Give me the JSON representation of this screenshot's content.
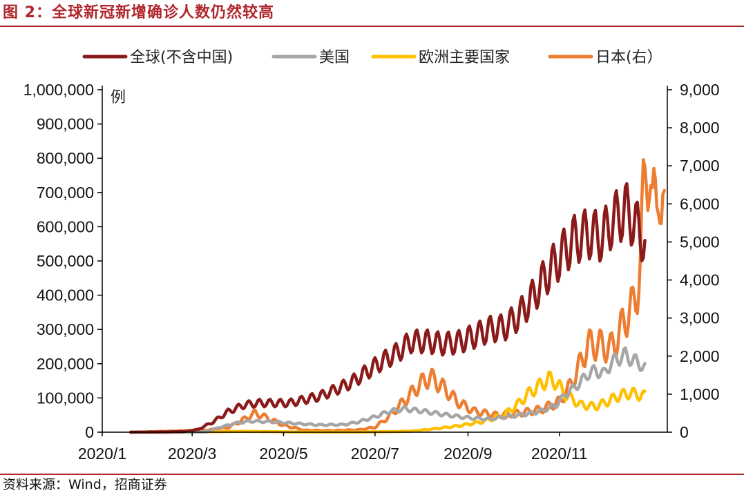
{
  "header": {
    "title": "图 2：全球新冠新增确诊人数仍然较高"
  },
  "footer": {
    "source": "资料来源：Wind，招商证券"
  },
  "chart_data": {
    "type": "line",
    "y_unit_label": "例",
    "ylim_left": [
      0,
      1000000
    ],
    "ylim_right": [
      0,
      9000
    ],
    "left_ticks": [
      "0",
      "100,000",
      "200,000",
      "300,000",
      "400,000",
      "500,000",
      "600,000",
      "700,000",
      "800,000",
      "900,000",
      "1,000,000"
    ],
    "right_ticks": [
      "0",
      "1,000",
      "2,000",
      "3,000",
      "4,000",
      "5,000",
      "6,000",
      "7,000",
      "8,000",
      "9,000"
    ],
    "x_tick_labels": [
      "2020/1",
      "2020/3",
      "2020/5",
      "2020/7",
      "2020/9",
      "2020/11"
    ],
    "grid": false,
    "legend_position": "top",
    "series": [
      {
        "name": "全球(不含中国)",
        "axis": "left",
        "color": "#8b1a1a",
        "weekly_amplitude": 0.13,
        "points": [
          [
            "2020-01-20",
            0
          ],
          [
            "2020-02-10",
            500
          ],
          [
            "2020-02-25",
            2000
          ],
          [
            "2020-03-05",
            8000
          ],
          [
            "2020-03-15",
            30000
          ],
          [
            "2020-03-25",
            60000
          ],
          [
            "2020-04-05",
            80000
          ],
          [
            "2020-04-15",
            85000
          ],
          [
            "2020-04-25",
            85000
          ],
          [
            "2020-05-05",
            85000
          ],
          [
            "2020-05-15",
            95000
          ],
          [
            "2020-05-25",
            105000
          ],
          [
            "2020-06-05",
            125000
          ],
          [
            "2020-06-15",
            145000
          ],
          [
            "2020-06-25",
            175000
          ],
          [
            "2020-07-05",
            205000
          ],
          [
            "2020-07-15",
            230000
          ],
          [
            "2020-07-25",
            265000
          ],
          [
            "2020-08-05",
            265000
          ],
          [
            "2020-08-15",
            258000
          ],
          [
            "2020-08-25",
            262000
          ],
          [
            "2020-09-05",
            280000
          ],
          [
            "2020-09-15",
            300000
          ],
          [
            "2020-09-25",
            305000
          ],
          [
            "2020-10-05",
            340000
          ],
          [
            "2020-10-15",
            400000
          ],
          [
            "2020-10-25",
            470000
          ],
          [
            "2020-11-01",
            510000
          ],
          [
            "2020-11-10",
            560000
          ],
          [
            "2020-11-20",
            580000
          ],
          [
            "2020-11-30",
            570000
          ],
          [
            "2020-12-05",
            610000
          ],
          [
            "2020-12-10",
            630000
          ],
          [
            "2020-12-15",
            650000
          ],
          [
            "2020-12-20",
            620000
          ],
          [
            "2020-12-25",
            580000
          ],
          [
            "2020-12-28",
            560000
          ]
        ]
      },
      {
        "name": "美国",
        "axis": "left",
        "color": "#a6a6a6",
        "weekly_amplitude": 0.1,
        "points": [
          [
            "2020-01-20",
            0
          ],
          [
            "2020-03-01",
            100
          ],
          [
            "2020-03-10",
            1000
          ],
          [
            "2020-03-20",
            15000
          ],
          [
            "2020-04-01",
            28000
          ],
          [
            "2020-04-10",
            32000
          ],
          [
            "2020-04-25",
            30000
          ],
          [
            "2020-05-10",
            25000
          ],
          [
            "2020-05-25",
            21000
          ],
          [
            "2020-06-10",
            22000
          ],
          [
            "2020-06-20",
            30000
          ],
          [
            "2020-07-01",
            45000
          ],
          [
            "2020-07-10",
            60000
          ],
          [
            "2020-07-20",
            68000
          ],
          [
            "2020-08-01",
            62000
          ],
          [
            "2020-08-15",
            52000
          ],
          [
            "2020-09-01",
            42000
          ],
          [
            "2020-09-15",
            38000
          ],
          [
            "2020-09-25",
            44000
          ],
          [
            "2020-10-10",
            53000
          ],
          [
            "2020-10-20",
            62000
          ],
          [
            "2020-10-30",
            80000
          ],
          [
            "2020-11-05",
            110000
          ],
          [
            "2020-11-15",
            145000
          ],
          [
            "2020-11-20",
            170000
          ],
          [
            "2020-11-25",
            180000
          ],
          [
            "2020-12-01",
            170000
          ],
          [
            "2020-12-05",
            200000
          ],
          [
            "2020-12-10",
            215000
          ],
          [
            "2020-12-15",
            225000
          ],
          [
            "2020-12-20",
            210000
          ],
          [
            "2020-12-25",
            200000
          ],
          [
            "2020-12-28",
            185000
          ]
        ]
      },
      {
        "name": "欧洲主要国家",
        "axis": "left",
        "color": "#ffc000",
        "weekly_amplitude": 0.15,
        "points": [
          [
            "2020-01-20",
            0
          ],
          [
            "2020-03-01",
            200
          ],
          [
            "2020-03-15",
            1500
          ],
          [
            "2020-04-01",
            2500
          ],
          [
            "2020-04-15",
            2000
          ],
          [
            "2020-05-01",
            1000
          ],
          [
            "2020-06-01",
            500
          ],
          [
            "2020-06-20",
            600
          ],
          [
            "2020-07-10",
            1500
          ],
          [
            "2020-07-25",
            3000
          ],
          [
            "2020-08-10",
            10000
          ],
          [
            "2020-08-25",
            18000
          ],
          [
            "2020-09-10",
            30000
          ],
          [
            "2020-09-25",
            50000
          ],
          [
            "2020-10-05",
            85000
          ],
          [
            "2020-10-12",
            115000
          ],
          [
            "2020-10-20",
            140000
          ],
          [
            "2020-10-25",
            155000
          ],
          [
            "2020-10-30",
            145000
          ],
          [
            "2020-11-05",
            110000
          ],
          [
            "2020-11-15",
            80000
          ],
          [
            "2020-11-25",
            75000
          ],
          [
            "2020-12-01",
            85000
          ],
          [
            "2020-12-10",
            105000
          ],
          [
            "2020-12-18",
            115000
          ],
          [
            "2020-12-28",
            105000
          ]
        ]
      },
      {
        "name": "日本(右）",
        "axis": "right",
        "color": "#ed7d31",
        "weekly_amplitude": 0.18,
        "points": [
          [
            "2020-01-20",
            0
          ],
          [
            "2020-02-01",
            10
          ],
          [
            "2020-02-20",
            30
          ],
          [
            "2020-03-10",
            50
          ],
          [
            "2020-03-25",
            120
          ],
          [
            "2020-04-05",
            350
          ],
          [
            "2020-04-12",
            500
          ],
          [
            "2020-04-20",
            380
          ],
          [
            "2020-05-01",
            180
          ],
          [
            "2020-05-15",
            50
          ],
          [
            "2020-06-01",
            40
          ],
          [
            "2020-06-20",
            60
          ],
          [
            "2020-07-01",
            130
          ],
          [
            "2020-07-10",
            400
          ],
          [
            "2020-07-20",
            800
          ],
          [
            "2020-08-01",
            1300
          ],
          [
            "2020-08-07",
            1450
          ],
          [
            "2020-08-15",
            1200
          ],
          [
            "2020-08-25",
            800
          ],
          [
            "2020-09-05",
            550
          ],
          [
            "2020-09-20",
            450
          ],
          [
            "2020-10-05",
            500
          ],
          [
            "2020-10-20",
            600
          ],
          [
            "2020-11-01",
            800
          ],
          [
            "2020-11-08",
            1200
          ],
          [
            "2020-11-15",
            1800
          ],
          [
            "2020-11-20",
            2300
          ],
          [
            "2020-11-28",
            2300
          ],
          [
            "2020-12-05",
            2200
          ],
          [
            "2020-12-10",
            2500
          ],
          [
            "2020-12-15",
            3000
          ],
          [
            "2020-12-20",
            3300
          ],
          [
            "2020-12-23",
            3800
          ],
          [
            "2020-12-25",
            4300
          ],
          [
            "2020-12-27",
            6200
          ],
          [
            "2020-12-29",
            7400
          ],
          [
            "2020-12-31",
            6800
          ],
          [
            "2021-01-02",
            5500
          ],
          [
            "2021-01-04",
            6500
          ],
          [
            "2021-01-06",
            7000
          ],
          [
            "2021-01-08",
            5200
          ],
          [
            "2021-01-10",
            5500
          ]
        ]
      }
    ]
  }
}
